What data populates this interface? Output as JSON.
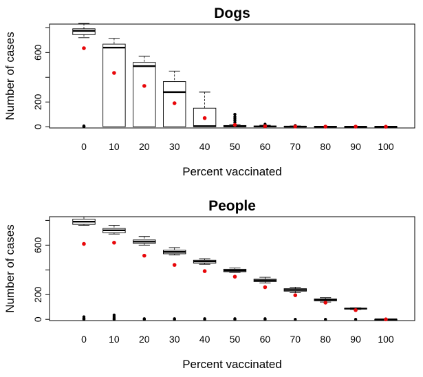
{
  "chart_data": [
    {
      "type": "box",
      "title": "Dogs",
      "xlabel": "Percent vaccinated",
      "ylabel": "Number of cases",
      "categories": [
        "0",
        "10",
        "20",
        "30",
        "40",
        "50",
        "60",
        "70",
        "80",
        "90",
        "100"
      ],
      "y_ticks": [
        0,
        200,
        400,
        600,
        800
      ],
      "y_tick_labels": [
        "0",
        "200",
        "",
        "600",
        ""
      ],
      "ylim": [
        -10,
        830
      ],
      "box_border_color": "#000000",
      "mean_color": "#e8070a",
      "boxes": [
        {
          "category": "0",
          "whisker_low": 720,
          "q1": 745,
          "median": 775,
          "q3": 792,
          "whisker_high": 835,
          "outliers": [
            0,
            2,
            4,
            6
          ],
          "mean": 635
        },
        {
          "category": "10",
          "whisker_low": 0,
          "q1": 0,
          "median": 640,
          "q3": 668,
          "whisker_high": 715,
          "outliers": [],
          "mean": 435
        },
        {
          "category": "20",
          "whisker_low": 0,
          "q1": 0,
          "median": 490,
          "q3": 520,
          "whisker_high": 570,
          "outliers": [],
          "mean": 330
        },
        {
          "category": "30",
          "whisker_low": 0,
          "q1": 0,
          "median": 280,
          "q3": 365,
          "whisker_high": 450,
          "outliers": [],
          "mean": 190
        },
        {
          "category": "40",
          "whisker_low": 0,
          "q1": 0,
          "median": 5,
          "q3": 150,
          "whisker_high": 280,
          "outliers": [],
          "mean": 70
        },
        {
          "category": "50",
          "whisker_low": 0,
          "q1": 0,
          "median": 3,
          "q3": 10,
          "whisker_high": 20,
          "outliers": [
            35,
            50,
            65,
            80,
            100
          ],
          "mean": 15
        },
        {
          "category": "60",
          "whisker_low": 0,
          "q1": 0,
          "median": 2,
          "q3": 6,
          "whisker_high": 12,
          "outliers": [
            20
          ],
          "mean": 4
        },
        {
          "category": "70",
          "whisker_low": 0,
          "q1": 0,
          "median": 1,
          "q3": 3,
          "whisker_high": 6,
          "outliers": [
            10
          ],
          "mean": 2
        },
        {
          "category": "80",
          "whisker_low": 0,
          "q1": 0,
          "median": 0,
          "q3": 2,
          "whisker_high": 3,
          "outliers": [],
          "mean": 1
        },
        {
          "category": "90",
          "whisker_low": 0,
          "q1": 0,
          "median": 0,
          "q3": 1,
          "whisker_high": 2,
          "outliers": [],
          "mean": 1
        },
        {
          "category": "100",
          "whisker_low": 0,
          "q1": 0,
          "median": 0,
          "q3": 1,
          "whisker_high": 2,
          "outliers": [],
          "mean": 0
        }
      ]
    },
    {
      "type": "box",
      "title": "People",
      "xlabel": "Percent vaccinated",
      "ylabel": "Number of cases",
      "categories": [
        "0",
        "10",
        "20",
        "30",
        "40",
        "50",
        "60",
        "70",
        "80",
        "90",
        "100"
      ],
      "y_ticks": [
        0,
        200,
        400,
        600,
        800
      ],
      "y_tick_labels": [
        "0",
        "200",
        "",
        "600",
        ""
      ],
      "ylim": [
        -10,
        830
      ],
      "box_border_color": "#000000",
      "mean_color": "#e8070a",
      "boxes": [
        {
          "category": "0",
          "whisker_low": 760,
          "q1": 768,
          "median": 790,
          "q3": 810,
          "whisker_high": 830,
          "outliers": [
            0,
            5,
            10,
            20
          ],
          "mean": 610
        },
        {
          "category": "10",
          "whisker_low": 690,
          "q1": 700,
          "median": 720,
          "q3": 735,
          "whisker_high": 760,
          "outliers": [
            0,
            10,
            20,
            35
          ],
          "mean": 620
        },
        {
          "category": "20",
          "whisker_low": 600,
          "q1": 615,
          "median": 628,
          "q3": 642,
          "whisker_high": 670,
          "outliers": [
            0,
            5
          ],
          "mean": 515
        },
        {
          "category": "30",
          "whisker_low": 520,
          "q1": 530,
          "median": 545,
          "q3": 560,
          "whisker_high": 580,
          "outliers": [
            0,
            5
          ],
          "mean": 440
        },
        {
          "category": "40",
          "whisker_low": 445,
          "q1": 455,
          "median": 468,
          "q3": 478,
          "whisker_high": 490,
          "outliers": [
            0,
            5
          ],
          "mean": 390
        },
        {
          "category": "50",
          "whisker_low": 380,
          "q1": 385,
          "median": 395,
          "q3": 405,
          "whisker_high": 415,
          "outliers": [
            0,
            5
          ],
          "mean": 345
        },
        {
          "category": "60",
          "whisker_low": 295,
          "q1": 305,
          "median": 315,
          "q3": 325,
          "whisker_high": 340,
          "outliers": [
            0,
            5
          ],
          "mean": 260
        },
        {
          "category": "70",
          "whisker_low": 215,
          "q1": 228,
          "median": 238,
          "q3": 248,
          "whisker_high": 260,
          "outliers": [
            0
          ],
          "mean": 195
        },
        {
          "category": "80",
          "whisker_low": 140,
          "q1": 150,
          "median": 158,
          "q3": 165,
          "whisker_high": 175,
          "outliers": [
            0
          ],
          "mean": 135
        },
        {
          "category": "90",
          "whisker_low": 80,
          "q1": 83,
          "median": 87,
          "q3": 90,
          "whisker_high": 93,
          "outliers": [
            0
          ],
          "mean": 75
        },
        {
          "category": "100",
          "whisker_low": 0,
          "q1": 0,
          "median": 0,
          "q3": 0,
          "whisker_high": 0,
          "outliers": [],
          "mean": 0
        }
      ]
    }
  ]
}
